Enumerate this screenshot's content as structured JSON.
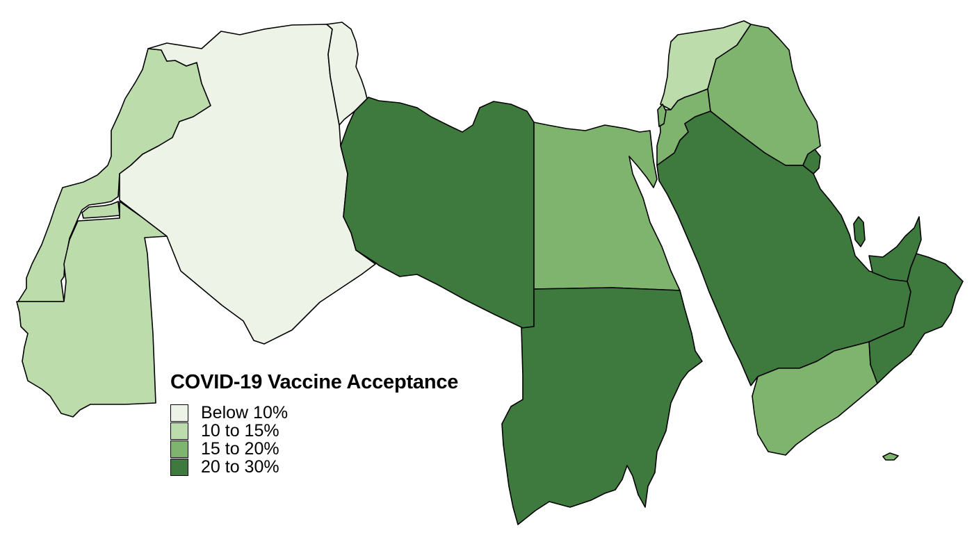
{
  "legend": {
    "title": "COVID-19 Vaccine Acceptance",
    "classes": [
      {
        "label": "Below 10%",
        "color": "#edf3e6"
      },
      {
        "label": "10 to 15%",
        "color": "#bcdcac"
      },
      {
        "label": "15 to 20%",
        "color": "#7eb46e"
      },
      {
        "label": "20 to 30%",
        "color": "#3e7a3e"
      }
    ]
  },
  "regions": [
    {
      "id": "morocco",
      "class": 1
    },
    {
      "id": "western-sahara",
      "class": 1
    },
    {
      "id": "mauritania",
      "class": 1
    },
    {
      "id": "algeria",
      "class": 0
    },
    {
      "id": "tunisia",
      "class": 0
    },
    {
      "id": "libya",
      "class": 3
    },
    {
      "id": "egypt",
      "class": 2
    },
    {
      "id": "sudan",
      "class": 3
    },
    {
      "id": "lebanon-syria",
      "class": 1
    },
    {
      "id": "iraq",
      "class": 2
    },
    {
      "id": "jordan",
      "class": 2
    },
    {
      "id": "palestine",
      "class": 2
    },
    {
      "id": "saudi-arabia",
      "class": 3
    },
    {
      "id": "kuwait",
      "class": 3
    },
    {
      "id": "qatar",
      "class": 3
    },
    {
      "id": "uae",
      "class": 3
    },
    {
      "id": "oman",
      "class": 3
    },
    {
      "id": "yemen",
      "class": 2
    },
    {
      "id": "socotra",
      "class": 2
    }
  ]
}
